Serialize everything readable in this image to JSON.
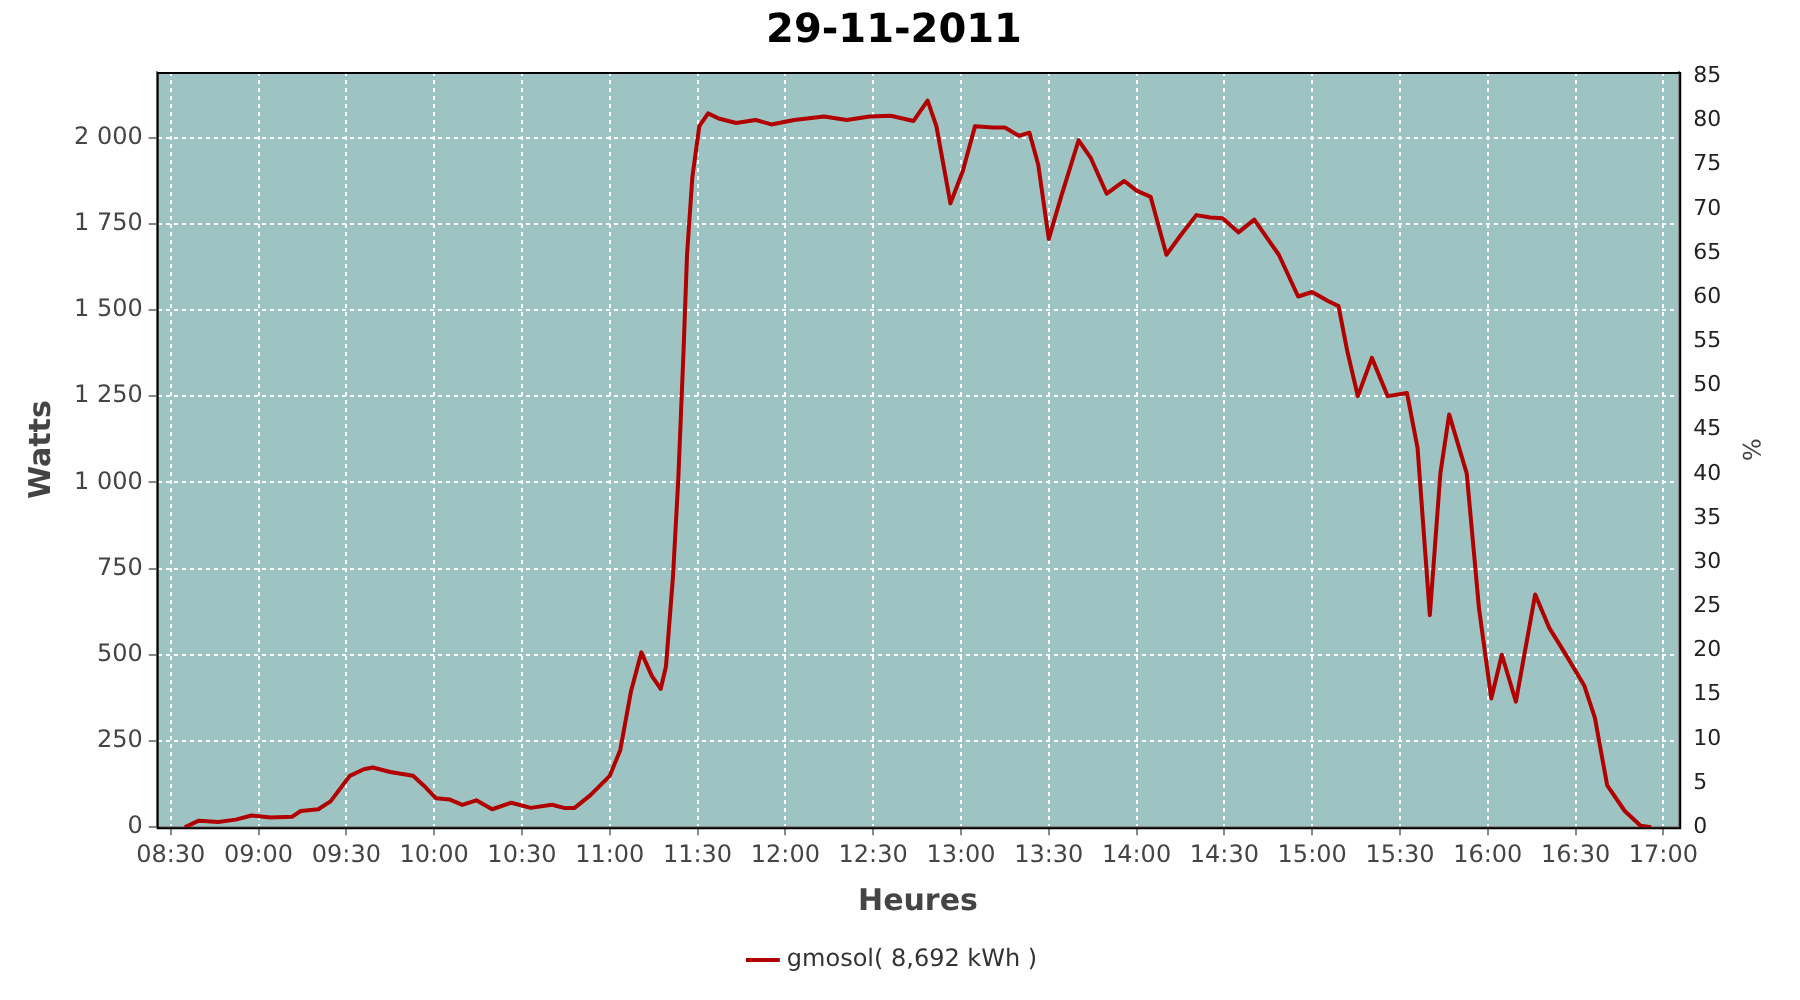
{
  "chart_data": {
    "type": "line",
    "title": "29-11-2011",
    "xlabel": "Heures",
    "ylabel": "Watts",
    "y2label": "%",
    "xlim": [
      8.42,
      17.09
    ],
    "xticks": [
      {
        "value": 8.5,
        "label": "08:30"
      },
      {
        "value": 9,
        "label": "09:00"
      },
      {
        "value": 9.5,
        "label": "09:30"
      },
      {
        "value": 10,
        "label": "10:00"
      },
      {
        "value": 10.5,
        "label": "10:30"
      },
      {
        "value": 11,
        "label": "11:00"
      },
      {
        "value": 11.5,
        "label": "11:30"
      },
      {
        "value": 12,
        "label": "12:00"
      },
      {
        "value": 12.5,
        "label": "12:30"
      },
      {
        "value": 13,
        "label": "13:00"
      },
      {
        "value": 13.5,
        "label": "13:30"
      },
      {
        "value": 14,
        "label": "14:00"
      },
      {
        "value": 14.5,
        "label": "14:30"
      },
      {
        "value": 15,
        "label": "15:00"
      },
      {
        "value": 15.5,
        "label": "15:30"
      },
      {
        "value": 16,
        "label": "16:00"
      },
      {
        "value": 16.5,
        "label": "16:30"
      },
      {
        "value": 17,
        "label": "17:00"
      }
    ],
    "ylim": [
      0,
      2190
    ],
    "yticks": [
      0,
      250,
      500,
      750,
      {
        "value": 1000,
        "label": "1 000"
      },
      {
        "value": 1250,
        "label": "1 250"
      },
      {
        "value": 1500,
        "label": "1 500"
      },
      {
        "value": 1750,
        "label": "1 750"
      },
      {
        "value": 2000,
        "label": "2 000"
      }
    ],
    "y2lim": [
      0,
      85.5
    ],
    "y2ticks": [
      0,
      5,
      10,
      15,
      20,
      25,
      30,
      35,
      40,
      45,
      50,
      55,
      60,
      65,
      70,
      75,
      80,
      85
    ],
    "grid": true,
    "legend": "bottom",
    "marker": "none",
    "line_style": "solid",
    "x": [
      8.58,
      8.66,
      8.77,
      8.87,
      8.96,
      9.07,
      9.19,
      9.24,
      9.34,
      9.41,
      9.52,
      9.6,
      9.65,
      9.75,
      9.88,
      9.94,
      10.01,
      10.09,
      10.16,
      10.24,
      10.33,
      10.44,
      10.55,
      10.67,
      10.74,
      10.8,
      10.89,
      11,
      11.06,
      11.12,
      11.18,
      11.24,
      11.29,
      11.32,
      11.36,
      11.39,
      11.42,
      11.44,
      11.47,
      11.51,
      11.56,
      11.62,
      11.72,
      11.83,
      11.92,
      12.05,
      12.22,
      12.35,
      12.48,
      12.6,
      12.73,
      12.81,
      12.86,
      12.94,
      13.01,
      13.08,
      13.18,
      13.25,
      13.33,
      13.39,
      13.44,
      13.5,
      13.57,
      13.67,
      13.74,
      13.83,
      13.93,
      14,
      14.08,
      14.17,
      14.25,
      14.34,
      14.42,
      14.49,
      14.58,
      14.67,
      14.81,
      14.92,
      15,
      15.09,
      15.15,
      15.2,
      15.26,
      15.34,
      15.43,
      15.54,
      15.6,
      15.67,
      15.73,
      15.78,
      15.88,
      15.95,
      16.02,
      16.08,
      16.16,
      16.27,
      16.35,
      16.44,
      16.55,
      16.61,
      16.68,
      16.78,
      16.87,
      16.93
    ],
    "series": [
      {
        "name": "gmosol( 8,692 kWh )",
        "color": "#b00000",
        "values": [
          0,
          19,
          15,
          22,
          34,
          28,
          30,
          47,
          52,
          75,
          149,
          168,
          173,
          160,
          149,
          121,
          84,
          80,
          65,
          78,
          52,
          71,
          56,
          65,
          56,
          56,
          93,
          149,
          224,
          392,
          507,
          438,
          401,
          466,
          727,
          1007,
          1380,
          1660,
          1884,
          2033,
          2070,
          2055,
          2042,
          2051,
          2038,
          2051,
          2061,
          2051,
          2061,
          2063,
          2048,
          2107,
          2033,
          1809,
          1902,
          2033,
          2029,
          2029,
          2005,
          2014,
          1921,
          1706,
          1828,
          1992,
          1940,
          1837,
          1874,
          1846,
          1828,
          1660,
          1716,
          1775,
          1768,
          1766,
          1725,
          1762,
          1660,
          1539,
          1552,
          1526,
          1511,
          1380,
          1250,
          1361,
          1250,
          1259,
          1100,
          615,
          1026,
          1197,
          1026,
          634,
          373,
          500,
          364,
          675,
          578,
          504,
          410,
          317,
          121,
          47,
          4,
          0
        ]
      }
    ]
  }
}
